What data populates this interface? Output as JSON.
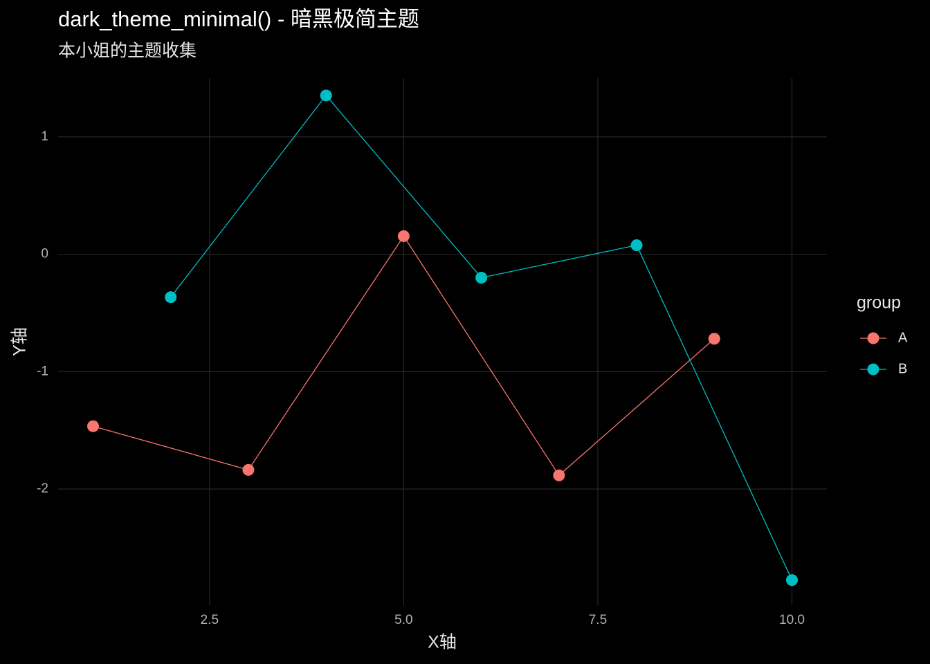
{
  "chart_data": {
    "type": "line",
    "title": "dark_theme_minimal() - 暗黑极简主题",
    "subtitle": "本小姐的主题收集",
    "x_label": "X轴",
    "y_label": "Y轴",
    "legend_title": "group",
    "legend_position": "right",
    "grid": true,
    "background": "#000000",
    "series": [
      {
        "name": "A",
        "color": "#F8766D",
        "x": [
          1,
          3,
          5,
          7,
          9
        ],
        "values": [
          -1.465,
          -1.837,
          0.154,
          -1.884,
          -0.72
        ]
      },
      {
        "name": "B",
        "color": "#00BFC4",
        "x": [
          2,
          4,
          6,
          8,
          10
        ],
        "values": [
          -0.366,
          1.353,
          -0.2,
          0.077,
          -2.776
        ]
      }
    ],
    "xlim": [
      0.55,
      10.45
    ],
    "xticks": [
      2.5,
      {
        "value": 5,
        "label": "5.0"
      },
      7.5,
      {
        "value": 10,
        "label": "10.0"
      }
    ],
    "ylim": [
      -2.99,
      1.5
    ],
    "yticks": [
      -2,
      -1,
      0,
      1
    ]
  }
}
